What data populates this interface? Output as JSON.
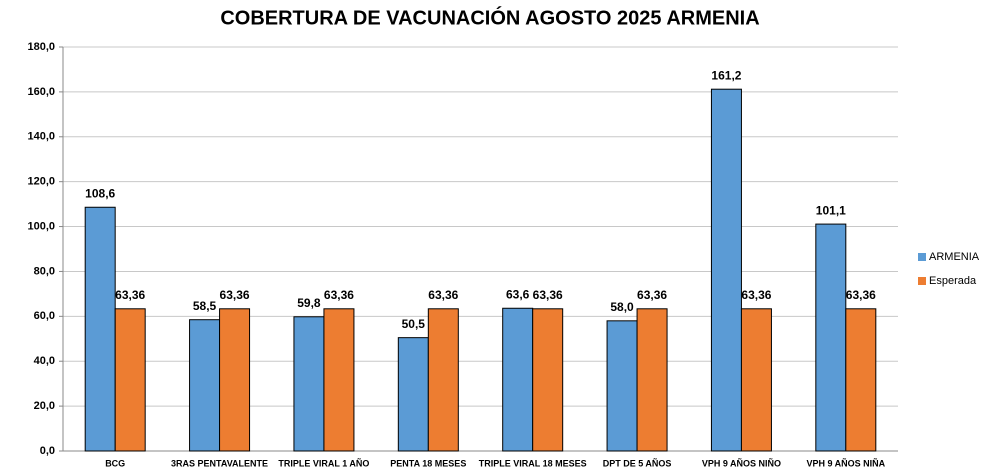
{
  "chart_data": {
    "type": "bar",
    "title": "COBERTURA DE VACUNACIÓN AGOSTO 2025 ARMENIA",
    "categories": [
      "BCG",
      "3RAS PENTAVALENTE",
      "TRIPLE VIRAL 1 AÑO",
      "PENTA 18 MESES",
      "TRIPLE VIRAL 18 MESES",
      "DPT DE 5 AÑOS",
      "VPH 9 AÑOS NIÑO",
      "VPH 9 AÑOS NIÑA"
    ],
    "series": [
      {
        "name": "ARMENIA",
        "color": "#5b9bd5",
        "values": [
          108.6,
          58.5,
          59.8,
          50.5,
          63.6,
          58.0,
          161.2,
          101.1
        ],
        "value_labels": [
          "108,6",
          "58,5",
          "59,8",
          "50,5",
          "63,6",
          "58,0",
          "161,2",
          "101,1"
        ]
      },
      {
        "name": "Esperada",
        "color": "#ed7d31",
        "values": [
          63.36,
          63.36,
          63.36,
          63.36,
          63.36,
          63.36,
          63.36,
          63.36
        ],
        "value_labels": [
          "63,36",
          "63,36",
          "63,36",
          "63,36",
          "63,36",
          "63,36",
          "63,36",
          "63,36"
        ]
      }
    ],
    "ylim": [
      0,
      180
    ],
    "yticks": [
      {
        "value": 0,
        "label": "0,0"
      },
      {
        "value": 20,
        "label": "20,0"
      },
      {
        "value": 40,
        "label": "40,0"
      },
      {
        "value": 60,
        "label": "60,0"
      },
      {
        "value": 80,
        "label": "80,0"
      },
      {
        "value": 100,
        "label": "100,0"
      },
      {
        "value": 120,
        "label": "120,0"
      },
      {
        "value": 140,
        "label": "140,0"
      },
      {
        "value": 160,
        "label": "160,0"
      },
      {
        "value": 180,
        "label": "180,0"
      }
    ],
    "grid": true,
    "legend": "right"
  }
}
